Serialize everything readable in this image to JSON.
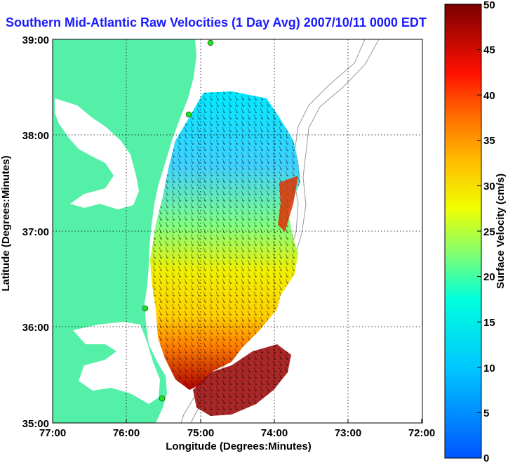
{
  "title": "Southern Mid-Atlantic Raw Velocities (1 Day Avg) 2007/10/11 0000 EDT",
  "xlabel": "Longitude (Degrees:Minutes)",
  "ylabel": "Latitude (Degrees:Minutes)",
  "colorbar_label": "Surface Velocity (cm/s)",
  "x_ticks": [
    "77:00",
    "76:00",
    "75:00",
    "74:00",
    "73:00",
    "72:00"
  ],
  "y_ticks": [
    "39:00",
    "38:00",
    "37:00",
    "36:00",
    "35:00"
  ],
  "colorbar_ticks": [
    "50",
    "45",
    "40",
    "35",
    "30",
    "25",
    "20",
    "15",
    "10",
    "5",
    "0"
  ],
  "colors": {
    "land": "#55f0a8",
    "title": "#1a1aff",
    "station": "#22dd22"
  },
  "chart_data": {
    "type": "vector-field map",
    "xlim": [
      -77,
      -72
    ],
    "ylim": [
      35,
      39
    ],
    "clim": [
      0,
      50
    ],
    "grid": true
  }
}
